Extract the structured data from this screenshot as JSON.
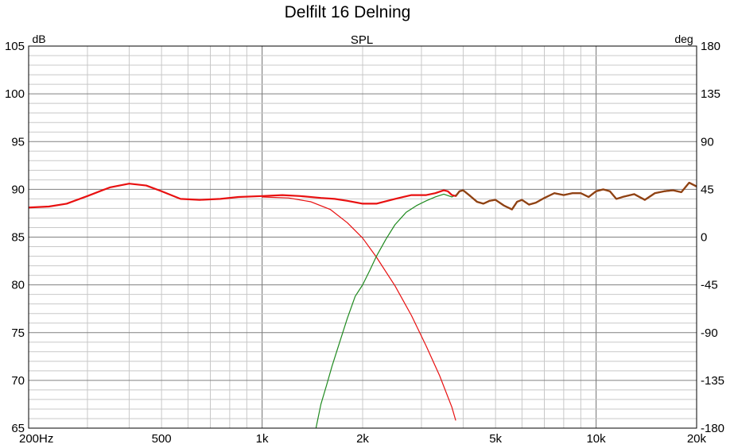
{
  "chart_data": {
    "type": "line",
    "title": "Delfilt 16 Delning",
    "subtitle": "SPL",
    "ylabel_left": "dB",
    "ylabel_right": "deg",
    "x_scale": "log",
    "xlim": [
      200,
      20000
    ],
    "ylim": [
      65,
      105
    ],
    "ylim_right": [
      -180,
      180
    ],
    "x_ticks": [
      {
        "value": 200,
        "label": "200Hz"
      },
      {
        "value": 500,
        "label": "500"
      },
      {
        "value": 1000,
        "label": "1k"
      },
      {
        "value": 2000,
        "label": "2k"
      },
      {
        "value": 5000,
        "label": "5k"
      },
      {
        "value": 10000,
        "label": "10k"
      },
      {
        "value": 20000,
        "label": "20k"
      }
    ],
    "y_ticks_left": [
      "105",
      "100",
      "95",
      "90",
      "85",
      "80",
      "75",
      "70",
      "65"
    ],
    "y_ticks_right": [
      "180",
      "135",
      "90",
      "45",
      "0",
      "-45",
      "-90",
      "-135",
      "-180"
    ],
    "grid": true,
    "colors": {
      "sum": "#e81010",
      "sum_high": "#8b4513",
      "lowpass": "#e81010",
      "highpass": "#1f8a1f",
      "grid_minor": "#c8c8c8",
      "grid_major": "#808080"
    },
    "series": [
      {
        "key": "sum",
        "x": [
          200,
          230,
          260,
          300,
          350,
          400,
          450,
          500,
          570,
          650,
          750,
          850,
          1000,
          1150,
          1300,
          1500,
          1650,
          1800,
          2000,
          2200,
          2500,
          2800,
          3100,
          3300,
          3500,
          3600,
          3700,
          3800,
          3900,
          4000,
          4200,
          4400,
          4600,
          4800,
          5000,
          5300,
          5600,
          5800,
          6000,
          6300,
          6600,
          7000,
          7500,
          8000,
          8500,
          9000,
          9500,
          10000,
          10500,
          11000,
          11500,
          12000,
          13000,
          14000,
          15000,
          16000,
          17000,
          18000,
          19000,
          20000
        ],
        "values": [
          88.1,
          88.2,
          88.5,
          89.3,
          90.2,
          90.6,
          90.4,
          89.8,
          89.0,
          88.9,
          89.0,
          89.2,
          89.3,
          89.4,
          89.3,
          89.1,
          89.0,
          88.8,
          88.5,
          88.5,
          89.0,
          89.4,
          89.4,
          89.6,
          89.9,
          89.8,
          89.4,
          89.3,
          89.8,
          89.9,
          89.3,
          88.7,
          88.5,
          88.8,
          88.9,
          88.3,
          87.9,
          88.7,
          88.9,
          88.4,
          88.6,
          89.1,
          89.6,
          89.4,
          89.6,
          89.6,
          89.2,
          89.8,
          90.0,
          89.8,
          89.0,
          89.2,
          89.5,
          88.9,
          89.6,
          89.8,
          89.9,
          89.7,
          90.7,
          90.3
        ]
      },
      {
        "key": "lowpass",
        "x": [
          1000,
          1200,
          1400,
          1600,
          1800,
          2000,
          2200,
          2500,
          2800,
          3100,
          3400,
          3700,
          3800
        ],
        "values": [
          89.2,
          89.1,
          88.7,
          87.9,
          86.5,
          84.9,
          82.9,
          79.9,
          76.8,
          73.6,
          70.5,
          67.2,
          65.8
        ]
      },
      {
        "key": "highpass",
        "x": [
          1450,
          1500,
          1560,
          1620,
          1700,
          1800,
          1900,
          2000,
          2100,
          2200,
          2350,
          2500,
          2700,
          2900,
          3100,
          3300,
          3500,
          3700,
          3800
        ],
        "values": [
          65.0,
          67.5,
          69.5,
          71.5,
          73.8,
          76.5,
          78.8,
          80.0,
          81.5,
          83.0,
          84.8,
          86.3,
          87.6,
          88.3,
          88.8,
          89.2,
          89.5,
          89.2,
          89.4
        ]
      }
    ]
  }
}
